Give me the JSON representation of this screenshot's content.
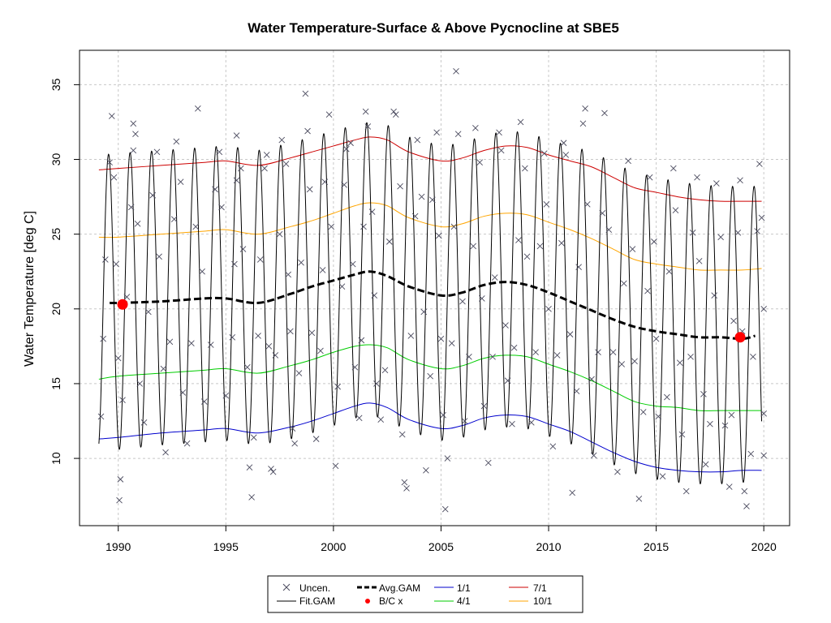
{
  "chart_data": {
    "type": "line",
    "title": "Water Temperature-Surface & Above Pycnocline at SBE5",
    "xlabel": "",
    "ylabel": "Water Temperature [deg C]",
    "xlim": [
      1988.2,
      2021.2
    ],
    "ylim": [
      5.5,
      37.3
    ],
    "x_ticks": [
      1990,
      1995,
      2000,
      2005,
      2010,
      2015,
      2020
    ],
    "y_ticks": [
      10,
      15,
      20,
      25,
      30,
      35
    ],
    "grid": true,
    "legend_position": "bottom",
    "legend": [
      {
        "label": "Uncen.",
        "style": "x-marker",
        "color": "#4a4a5e"
      },
      {
        "label": "Fit.GAM",
        "style": "line",
        "color": "#000000"
      },
      {
        "label": "Avg.GAM",
        "style": "dashed",
        "color": "#000000"
      },
      {
        "label": "B/C x",
        "style": "dot",
        "color": "#ff0000"
      },
      {
        "label": "1/1",
        "style": "line",
        "color": "#0000cd"
      },
      {
        "label": "4/1",
        "style": "line",
        "color": "#00cd00"
      },
      {
        "label": "7/1",
        "style": "line",
        "color": "#cd0000"
      },
      {
        "label": "10/1",
        "style": "line",
        "color": "#ffa500"
      }
    ],
    "fit_range": [
      1989.1,
      2019.9
    ],
    "series": [
      {
        "name": "7/1",
        "color": "#cd0000",
        "x": [
          1989.1,
          1990,
          1992,
          1994,
          1995,
          1996.5,
          1998,
          1999,
          2000,
          2001,
          2001.7,
          2002.5,
          2003.5,
          2005,
          2006,
          2007,
          2008,
          2009,
          2010,
          2011,
          2012,
          2013,
          2014,
          2015,
          2016,
          2017,
          2018,
          2019,
          2019.9
        ],
        "values": [
          29.3,
          29.4,
          29.6,
          29.8,
          29.9,
          29.6,
          30.1,
          30.5,
          30.9,
          31.3,
          31.5,
          31.3,
          30.5,
          29.9,
          30.1,
          30.6,
          30.9,
          30.8,
          30.3,
          29.9,
          29.5,
          28.8,
          28.1,
          27.8,
          27.5,
          27.3,
          27.2,
          27.2,
          27.2
        ]
      },
      {
        "name": "10/1",
        "color": "#ffa500",
        "x": [
          1989.1,
          1990,
          1992,
          1994,
          1995,
          1996.5,
          1998,
          1999,
          2000,
          2001,
          2001.7,
          2002.5,
          2003.5,
          2005,
          2006,
          2007,
          2008,
          2009,
          2010,
          2011,
          2012,
          2013,
          2014,
          2015,
          2016,
          2017,
          2018,
          2019,
          2019.9
        ],
        "values": [
          24.8,
          24.8,
          25.0,
          25.2,
          25.3,
          25.0,
          25.5,
          25.9,
          26.4,
          26.9,
          27.1,
          26.9,
          26.1,
          25.5,
          25.7,
          26.2,
          26.4,
          26.3,
          25.8,
          25.3,
          24.7,
          24.0,
          23.3,
          23.0,
          22.8,
          22.6,
          22.6,
          22.6,
          22.7
        ]
      },
      {
        "name": "Avg.GAM",
        "color": "#000000",
        "x": [
          1989.6,
          1990,
          1992,
          1994,
          1995,
          1996.5,
          1998,
          1999,
          2000,
          2001,
          2001.7,
          2002.5,
          2003.5,
          2005,
          2006,
          2007,
          2008,
          2009,
          2010,
          2011,
          2012,
          2013,
          2014,
          2015,
          2016,
          2017,
          2018,
          2019,
          2019.6
        ],
        "values": [
          20.4,
          20.4,
          20.5,
          20.7,
          20.7,
          20.4,
          21.0,
          21.5,
          21.9,
          22.3,
          22.5,
          22.2,
          21.5,
          20.9,
          21.1,
          21.6,
          21.8,
          21.6,
          21.1,
          20.5,
          19.9,
          19.3,
          18.8,
          18.5,
          18.3,
          18.1,
          18.1,
          18.0,
          18.2
        ]
      },
      {
        "name": "4/1",
        "color": "#00cd00",
        "x": [
          1989.1,
          1990,
          1992,
          1994,
          1995,
          1996.5,
          1998,
          1999,
          2000,
          2001,
          2001.7,
          2002.5,
          2003.5,
          2005,
          2006,
          2007,
          2008,
          2009,
          2010,
          2011,
          2012,
          2013,
          2014,
          2015,
          2016,
          2017,
          2018,
          2019,
          2019.9
        ],
        "values": [
          15.3,
          15.5,
          15.7,
          15.9,
          16.0,
          15.7,
          16.2,
          16.6,
          17.1,
          17.5,
          17.6,
          17.4,
          16.6,
          16.0,
          16.2,
          16.7,
          16.9,
          16.8,
          16.3,
          15.8,
          15.2,
          14.5,
          13.8,
          13.5,
          13.4,
          13.2,
          13.2,
          13.2,
          13.2
        ]
      },
      {
        "name": "1/1",
        "color": "#0000cd",
        "x": [
          1989.1,
          1990,
          1992,
          1994,
          1995,
          1996.5,
          1998,
          1999,
          2000,
          2001,
          2001.7,
          2002.5,
          2003.5,
          2005,
          2006,
          2007,
          2008,
          2009,
          2010,
          2011,
          2012,
          2013,
          2014,
          2015,
          2016,
          2017,
          2018,
          2019,
          2019.9
        ],
        "values": [
          11.3,
          11.4,
          11.7,
          11.9,
          12.0,
          11.7,
          12.1,
          12.5,
          13.0,
          13.5,
          13.7,
          13.4,
          12.6,
          12.0,
          12.2,
          12.7,
          12.9,
          12.8,
          12.3,
          11.8,
          11.1,
          10.4,
          9.8,
          9.4,
          9.2,
          9.1,
          9.1,
          9.2,
          9.2
        ]
      }
    ],
    "bc_points": [
      {
        "x": 1990.2,
        "y": 20.3
      },
      {
        "x": 2018.9,
        "y": 18.1
      }
    ],
    "uncensored": [
      [
        1989.2,
        12.8
      ],
      [
        1989.3,
        18.0
      ],
      [
        1989.4,
        23.3
      ],
      [
        1989.6,
        29.8
      ],
      [
        1989.7,
        32.9
      ],
      [
        1989.8,
        28.8
      ],
      [
        1989.9,
        23.0
      ],
      [
        1990.0,
        16.7
      ],
      [
        1990.05,
        7.2
      ],
      [
        1990.1,
        8.6
      ],
      [
        1990.2,
        13.9
      ],
      [
        1990.4,
        20.8
      ],
      [
        1990.6,
        26.8
      ],
      [
        1990.7,
        30.6
      ],
      [
        1990.7,
        32.4
      ],
      [
        1990.8,
        31.7
      ],
      [
        1990.9,
        25.7
      ],
      [
        1991.0,
        15.0
      ],
      [
        1991.2,
        12.4
      ],
      [
        1991.4,
        19.8
      ],
      [
        1991.6,
        27.6
      ],
      [
        1991.8,
        30.5
      ],
      [
        1991.9,
        23.5
      ],
      [
        1992.1,
        16.0
      ],
      [
        1992.2,
        10.4
      ],
      [
        1992.4,
        17.8
      ],
      [
        1992.6,
        26.0
      ],
      [
        1992.7,
        31.2
      ],
      [
        1992.9,
        28.5
      ],
      [
        1993.0,
        14.4
      ],
      [
        1993.2,
        11.0
      ],
      [
        1993.4,
        17.7
      ],
      [
        1993.6,
        25.5
      ],
      [
        1993.7,
        33.4
      ],
      [
        1993.9,
        22.5
      ],
      [
        1994.0,
        13.8
      ],
      [
        1994.3,
        17.6
      ],
      [
        1994.5,
        28.0
      ],
      [
        1994.7,
        30.5
      ],
      [
        1994.8,
        26.8
      ],
      [
        1995.0,
        14.2
      ],
      [
        1995.3,
        18.1
      ],
      [
        1995.4,
        23.0
      ],
      [
        1995.5,
        28.6
      ],
      [
        1995.5,
        31.6
      ],
      [
        1995.7,
        29.4
      ],
      [
        1995.8,
        24.0
      ],
      [
        1996.0,
        16.1
      ],
      [
        1996.1,
        9.4
      ],
      [
        1996.2,
        7.4
      ],
      [
        1996.3,
        11.4
      ],
      [
        1996.5,
        18.2
      ],
      [
        1996.6,
        23.3
      ],
      [
        1996.8,
        29.4
      ],
      [
        1996.9,
        30.3
      ],
      [
        1997.0,
        17.5
      ],
      [
        1997.1,
        9.3
      ],
      [
        1997.2,
        9.1
      ],
      [
        1997.3,
        16.9
      ],
      [
        1997.5,
        25.0
      ],
      [
        1997.6,
        31.3
      ],
      [
        1997.8,
        29.7
      ],
      [
        1997.9,
        22.3
      ],
      [
        1998.0,
        18.5
      ],
      [
        1998.1,
        12.0
      ],
      [
        1998.2,
        11.0
      ],
      [
        1998.4,
        15.7
      ],
      [
        1998.5,
        23.1
      ],
      [
        1998.7,
        34.4
      ],
      [
        1998.8,
        31.9
      ],
      [
        1998.9,
        28.0
      ],
      [
        1999.0,
        18.4
      ],
      [
        1999.2,
        11.3
      ],
      [
        1999.4,
        17.2
      ],
      [
        1999.5,
        22.6
      ],
      [
        1999.6,
        28.5
      ],
      [
        1999.8,
        33.0
      ],
      [
        1999.9,
        25.5
      ],
      [
        2000.1,
        9.5
      ],
      [
        2000.2,
        14.8
      ],
      [
        2000.4,
        21.5
      ],
      [
        2000.5,
        28.3
      ],
      [
        2000.6,
        30.7
      ],
      [
        2000.8,
        31.1
      ],
      [
        2000.9,
        23.0
      ],
      [
        2001.0,
        16.1
      ],
      [
        2001.2,
        12.7
      ],
      [
        2001.3,
        17.9
      ],
      [
        2001.4,
        25.5
      ],
      [
        2001.5,
        33.2
      ],
      [
        2001.6,
        32.2
      ],
      [
        2001.8,
        26.5
      ],
      [
        2001.9,
        20.9
      ],
      [
        2002.0,
        15.0
      ],
      [
        2002.2,
        12.6
      ],
      [
        2002.4,
        15.9
      ],
      [
        2002.6,
        24.5
      ],
      [
        2002.8,
        33.2
      ],
      [
        2002.9,
        33.0
      ],
      [
        2003.1,
        28.2
      ],
      [
        2003.2,
        11.6
      ],
      [
        2003.3,
        8.4
      ],
      [
        2003.4,
        8.0
      ],
      [
        2003.6,
        18.2
      ],
      [
        2003.8,
        26.2
      ],
      [
        2003.9,
        31.3
      ],
      [
        2004.1,
        27.5
      ],
      [
        2004.2,
        19.8
      ],
      [
        2004.3,
        9.2
      ],
      [
        2004.5,
        15.5
      ],
      [
        2004.6,
        27.3
      ],
      [
        2004.8,
        31.8
      ],
      [
        2004.9,
        24.9
      ],
      [
        2005.0,
        18.0
      ],
      [
        2005.1,
        12.9
      ],
      [
        2005.2,
        6.6
      ],
      [
        2005.3,
        10.0
      ],
      [
        2005.5,
        17.7
      ],
      [
        2005.6,
        25.5
      ],
      [
        2005.7,
        35.9
      ],
      [
        2005.8,
        31.7
      ],
      [
        2006.0,
        20.5
      ],
      [
        2006.1,
        12.5
      ],
      [
        2006.3,
        16.8
      ],
      [
        2006.5,
        24.2
      ],
      [
        2006.6,
        32.1
      ],
      [
        2006.8,
        29.8
      ],
      [
        2006.9,
        20.7
      ],
      [
        2007.0,
        13.5
      ],
      [
        2007.2,
        9.7
      ],
      [
        2007.4,
        16.8
      ],
      [
        2007.5,
        22.1
      ],
      [
        2007.7,
        31.8
      ],
      [
        2007.8,
        30.6
      ],
      [
        2008.0,
        18.9
      ],
      [
        2008.1,
        15.2
      ],
      [
        2008.3,
        12.3
      ],
      [
        2008.4,
        17.4
      ],
      [
        2008.6,
        24.6
      ],
      [
        2008.7,
        32.5
      ],
      [
        2008.9,
        29.4
      ],
      [
        2009.0,
        23.5
      ],
      [
        2009.2,
        12.4
      ],
      [
        2009.4,
        17.1
      ],
      [
        2009.6,
        24.2
      ],
      [
        2009.8,
        30.4
      ],
      [
        2009.9,
        27.0
      ],
      [
        2010.0,
        20.0
      ],
      [
        2010.2,
        10.8
      ],
      [
        2010.4,
        16.9
      ],
      [
        2010.6,
        24.4
      ],
      [
        2010.7,
        31.1
      ],
      [
        2010.8,
        30.3
      ],
      [
        2011.0,
        18.3
      ],
      [
        2011.1,
        7.7
      ],
      [
        2011.3,
        14.5
      ],
      [
        2011.4,
        22.8
      ],
      [
        2011.6,
        32.4
      ],
      [
        2011.7,
        33.4
      ],
      [
        2011.8,
        27.0
      ],
      [
        2012.0,
        15.3
      ],
      [
        2012.1,
        10.2
      ],
      [
        2012.3,
        17.1
      ],
      [
        2012.5,
        26.4
      ],
      [
        2012.6,
        33.1
      ],
      [
        2012.8,
        25.3
      ],
      [
        2013.0,
        17.1
      ],
      [
        2013.2,
        9.1
      ],
      [
        2013.4,
        16.3
      ],
      [
        2013.5,
        21.7
      ],
      [
        2013.7,
        29.9
      ],
      [
        2013.9,
        24.0
      ],
      [
        2014.0,
        16.5
      ],
      [
        2014.2,
        7.3
      ],
      [
        2014.4,
        13.1
      ],
      [
        2014.6,
        21.2
      ],
      [
        2014.7,
        28.8
      ],
      [
        2014.9,
        24.5
      ],
      [
        2015.0,
        18.0
      ],
      [
        2015.1,
        12.8
      ],
      [
        2015.3,
        8.8
      ],
      [
        2015.5,
        14.1
      ],
      [
        2015.6,
        22.5
      ],
      [
        2015.8,
        29.4
      ],
      [
        2015.9,
        26.6
      ],
      [
        2016.1,
        16.4
      ],
      [
        2016.2,
        11.6
      ],
      [
        2016.4,
        7.8
      ],
      [
        2016.6,
        16.8
      ],
      [
        2016.7,
        25.1
      ],
      [
        2016.9,
        28.8
      ],
      [
        2017.0,
        23.2
      ],
      [
        2017.2,
        14.3
      ],
      [
        2017.3,
        9.6
      ],
      [
        2017.5,
        12.3
      ],
      [
        2017.7,
        20.9
      ],
      [
        2017.8,
        28.4
      ],
      [
        2018.0,
        24.8
      ],
      [
        2018.2,
        12.2
      ],
      [
        2018.4,
        8.1
      ],
      [
        2018.5,
        12.9
      ],
      [
        2018.6,
        19.2
      ],
      [
        2018.8,
        25.1
      ],
      [
        2018.9,
        28.6
      ],
      [
        2019.0,
        18.5
      ],
      [
        2019.1,
        7.8
      ],
      [
        2019.2,
        6.8
      ],
      [
        2019.4,
        10.3
      ],
      [
        2019.5,
        16.8
      ],
      [
        2019.7,
        25.2
      ],
      [
        2019.8,
        29.7
      ],
      [
        2019.9,
        26.1
      ],
      [
        2020.0,
        20.0
      ],
      [
        2020.0,
        13.0
      ],
      [
        2020.0,
        10.2
      ]
    ]
  }
}
